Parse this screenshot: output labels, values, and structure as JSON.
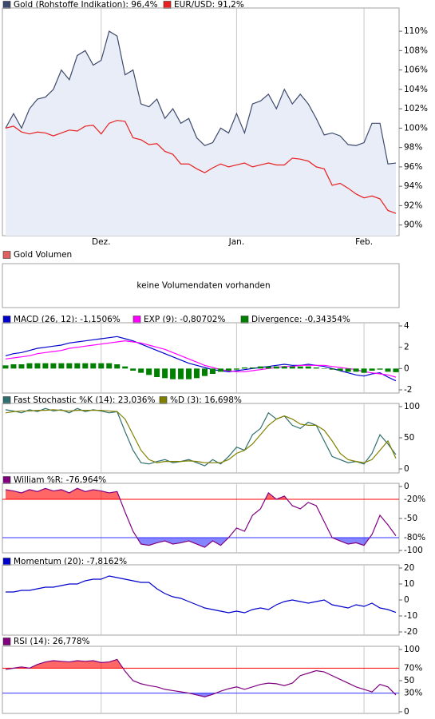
{
  "chart_data": [
    {
      "type": "line",
      "categories": [
        null,
        null,
        null,
        null,
        null,
        null,
        null,
        null,
        null,
        null,
        null,
        null,
        "Dez.",
        null,
        null,
        null,
        null,
        null,
        null,
        null,
        null,
        null,
        null,
        null,
        null,
        null,
        null,
        null,
        null,
        "Jan.",
        null,
        null,
        null,
        null,
        null,
        null,
        null,
        null,
        null,
        null,
        null,
        null,
        null,
        null,
        null,
        "Feb.",
        null,
        null,
        null,
        null
      ],
      "series": [
        {
          "name": "Gold (Rohstoffe Indikation): 96,4%",
          "color": "#3d4a6b",
          "fill": "#e9edf7",
          "values": [
            100,
            101.5,
            100,
            102,
            103,
            103.2,
            104,
            106,
            105,
            107.5,
            108,
            106.5,
            107,
            110,
            109.5,
            105.5,
            106,
            102.5,
            102.2,
            103,
            101,
            102,
            100.5,
            101,
            99,
            98.2,
            98.5,
            100,
            99.5,
            101.5,
            99.5,
            102.5,
            102.8,
            103.5,
            102,
            104,
            102.5,
            103.5,
            102.5,
            101,
            99.3,
            99.5,
            99.2,
            98.3,
            98.2,
            98.5,
            100.5,
            100.5,
            96.3,
            96.4
          ]
        },
        {
          "name": "EUR/USD: 91,2%",
          "color": "#e82020",
          "values": [
            100,
            100.2,
            99.6,
            99.4,
            99.6,
            99.5,
            99.2,
            99.5,
            99.8,
            99.7,
            100.2,
            100.3,
            99.4,
            100.5,
            100.8,
            100.7,
            99,
            98.8,
            98.3,
            98.4,
            97.6,
            97.3,
            96.3,
            96.3,
            95.8,
            95.4,
            95.9,
            96.3,
            96,
            96.2,
            96.4,
            96,
            96.2,
            96.4,
            96.2,
            96.2,
            96.9,
            96.8,
            96.6,
            96,
            95.8,
            94.1,
            94.3,
            93.8,
            93.2,
            92.8,
            93,
            92.7,
            91.5,
            91.2
          ]
        }
      ],
      "ylim": [
        88.9,
        112.4
      ],
      "yticks": [
        {
          "value": 90,
          "label": "90%"
        },
        {
          "value": 92,
          "label": "92%"
        },
        {
          "value": 94,
          "label": "94%"
        },
        {
          "value": 96,
          "label": "96%"
        },
        {
          "value": 98,
          "label": "98%"
        },
        {
          "value": 100,
          "label": "100%"
        },
        {
          "value": 102,
          "label": "102%"
        },
        {
          "value": 104,
          "label": "104%"
        },
        {
          "value": 106,
          "label": "106%"
        },
        {
          "value": 108,
          "label": "108%"
        },
        {
          "value": 110,
          "label": "110%"
        }
      ]
    },
    {
      "type": "message",
      "series": [
        {
          "name": "Gold Volumen",
          "color": "#e06060"
        }
      ],
      "message": "keine Volumendaten vorhanden"
    },
    {
      "type": "line",
      "series": [
        {
          "name": "MACD (26, 12): -1,1506%",
          "color": "#0000cc",
          "values": [
            1.2,
            1.4,
            1.5,
            1.7,
            1.9,
            2.0,
            2.1,
            2.2,
            2.4,
            2.5,
            2.6,
            2.7,
            2.8,
            2.9,
            3.0,
            2.8,
            2.6,
            2.3,
            2.0,
            1.7,
            1.4,
            1.1,
            0.8,
            0.5,
            0.3,
            0.1,
            -0.1,
            -0.2,
            -0.3,
            -0.2,
            -0.1,
            0,
            0.1,
            0.2,
            0.3,
            0.4,
            0.3,
            0.3,
            0.4,
            0.3,
            0.2,
            0,
            -0.2,
            -0.4,
            -0.6,
            -0.7,
            -0.5,
            -0.4,
            -0.8,
            -1.15
          ]
        },
        {
          "name": "EXP (9): -0,80702%",
          "color": "#ff00ff",
          "values": [
            0.9,
            1.0,
            1.1,
            1.2,
            1.4,
            1.5,
            1.6,
            1.7,
            1.9,
            2.0,
            2.1,
            2.2,
            2.3,
            2.4,
            2.5,
            2.6,
            2.5,
            2.4,
            2.2,
            2.0,
            1.8,
            1.5,
            1.2,
            0.9,
            0.6,
            0.3,
            0.1,
            -0.1,
            -0.2,
            -0.3,
            -0.3,
            -0.2,
            -0.1,
            0,
            0.1,
            0.2,
            0.2,
            0.3,
            0.3,
            0.3,
            0.3,
            0.2,
            0.1,
            0,
            -0.1,
            -0.3,
            -0.4,
            -0.5,
            -0.6,
            -0.81
          ]
        },
        {
          "name": "Divergence: -0,34354%",
          "color": "#008000",
          "type": "bar",
          "values": [
            0.3,
            0.4,
            0.4,
            0.5,
            0.5,
            0.5,
            0.5,
            0.5,
            0.5,
            0.5,
            0.5,
            0.5,
            0.5,
            0.5,
            0.4,
            0.2,
            -0.2,
            -0.4,
            -0.6,
            -0.8,
            -0.9,
            -1.0,
            -1.0,
            -1.0,
            -0.9,
            -0.7,
            -0.5,
            -0.3,
            -0.2,
            -0.1,
            0.1,
            0.1,
            0.2,
            0.2,
            0.2,
            0.2,
            0.2,
            0.2,
            0.2,
            0.1,
            0,
            -0.1,
            -0.2,
            -0.3,
            -0.3,
            -0.4,
            -0.2,
            -0.1,
            -0.3,
            -0.34
          ]
        }
      ],
      "ylim": [
        -2.3,
        4.3
      ],
      "yticks": [
        4,
        2,
        0,
        -2
      ]
    },
    {
      "type": "line",
      "series": [
        {
          "name": "Fast Stochastic %K (14): 23,036%",
          "color": "#2f6f6f",
          "values": [
            95,
            93,
            90,
            95,
            92,
            97,
            93,
            95,
            90,
            97,
            92,
            95,
            93,
            90,
            92,
            60,
            30,
            10,
            8,
            12,
            15,
            10,
            12,
            15,
            10,
            5,
            15,
            8,
            20,
            35,
            30,
            55,
            65,
            90,
            80,
            85,
            70,
            65,
            75,
            70,
            45,
            20,
            15,
            10,
            12,
            8,
            25,
            55,
            40,
            23
          ]
        },
        {
          "name": "%D (3): 16,698%",
          "color": "#808000",
          "values": [
            90,
            92,
            93,
            93,
            94,
            94,
            95,
            94,
            93,
            94,
            94,
            94,
            94,
            93,
            92,
            80,
            55,
            30,
            15,
            10,
            12,
            12,
            12,
            13,
            12,
            10,
            10,
            10,
            15,
            25,
            30,
            40,
            55,
            70,
            80,
            85,
            80,
            72,
            70,
            70,
            62,
            45,
            25,
            15,
            12,
            10,
            15,
            30,
            45,
            17
          ]
        }
      ],
      "ylim": [
        -6.4,
        105.1
      ],
      "yticks": [
        100,
        50,
        0
      ]
    },
    {
      "type": "line",
      "series": [
        {
          "name": "William %R: -76,964%",
          "color": "#800080",
          "values": [
            -5,
            -7,
            -10,
            -5,
            -8,
            -3,
            -7,
            -5,
            -10,
            -3,
            -8,
            -5,
            -7,
            -10,
            -8,
            -40,
            -70,
            -90,
            -92,
            -88,
            -85,
            -90,
            -88,
            -85,
            -90,
            -95,
            -85,
            -92,
            -80,
            -65,
            -70,
            -45,
            -35,
            -10,
            -20,
            -15,
            -30,
            -35,
            -25,
            -30,
            -55,
            -80,
            -85,
            -90,
            -88,
            -92,
            -75,
            -45,
            -60,
            -77
          ]
        }
      ],
      "levels": [
        {
          "value": -20,
          "label": "-20%",
          "color": "#ff0000",
          "fill": "above"
        },
        {
          "value": -80,
          "label": "-80%",
          "color": "#3333ff",
          "fill": "below"
        }
      ],
      "ylim": [
        -103.7,
        4.9
      ],
      "yticks": [
        0,
        -50,
        -100
      ]
    },
    {
      "type": "line",
      "series": [
        {
          "name": "Momentum (20): -7,8162%",
          "color": "#0000cc",
          "values": [
            5,
            5,
            6,
            6,
            7,
            8,
            8,
            9,
            10,
            10,
            12,
            13,
            13,
            15,
            14,
            13,
            12,
            11,
            11,
            7,
            4,
            2,
            1,
            -1,
            -3,
            -5,
            -6,
            -7,
            -8,
            -7,
            -8,
            -6,
            -5,
            -6,
            -3,
            -1,
            0,
            -1,
            -2,
            -1,
            0,
            -3,
            -4,
            -5,
            -3,
            -4,
            -2,
            -5,
            -6,
            -7.8
          ]
        }
      ],
      "ylim": [
        -22,
        22
      ],
      "yticks": [
        20,
        10,
        0,
        -10,
        -20
      ]
    },
    {
      "type": "line",
      "series": [
        {
          "name": "RSI (14): 26,778%",
          "color": "#800080",
          "values": [
            68,
            70,
            72,
            70,
            76,
            80,
            82,
            81,
            80,
            82,
            81,
            82,
            79,
            80,
            84,
            65,
            50,
            45,
            42,
            40,
            36,
            34,
            32,
            30,
            27,
            24,
            28,
            33,
            37,
            40,
            36,
            40,
            44,
            46,
            45,
            42,
            46,
            58,
            62,
            66,
            64,
            58,
            52,
            46,
            40,
            36,
            32,
            44,
            40,
            27
          ]
        }
      ],
      "levels": [
        {
          "value": 70,
          "label": "70%",
          "color": "#ff0000",
          "fill": "above"
        },
        {
          "value": 30,
          "label": "30%",
          "color": "#3333ff",
          "fill": "below"
        }
      ],
      "ylim": [
        -2.6,
        105.1
      ],
      "yticks": [
        100,
        50,
        0
      ]
    }
  ]
}
